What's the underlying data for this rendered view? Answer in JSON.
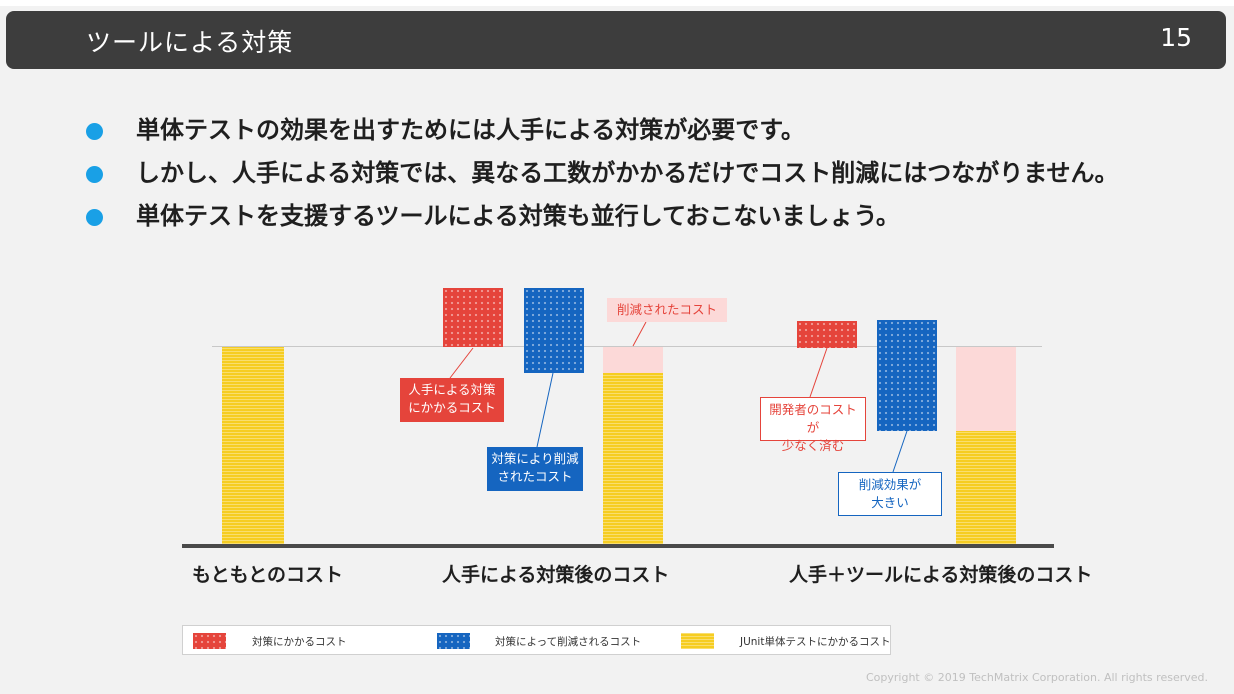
{
  "slide": {
    "title": "ツールによる対策",
    "page_number": "15"
  },
  "bullets": [
    "単体テストの効果を出すためには人手による対策が必要です。",
    "しかし、人手による対策では、異なる工数がかかるだけでコスト削減にはつながりません。",
    "単体テストを支援するツールによる対策も並行しておこないましょう。"
  ],
  "diagram": {
    "categories": [
      "もともとのコスト",
      "人手による対策後のコスト",
      "人手＋ツールによる対策後のコスト"
    ],
    "callouts": {
      "manual_cost": "人手による対策\nにかかるコスト",
      "reduced_by_measure": "対策により削減\nされたコスト",
      "reduced_cost": "削減されたコスト",
      "dev_cost_small": "開発者のコストが\n少なく済む",
      "big_effect": "削減効果が\n大きい"
    },
    "colors": {
      "measure_cost": "#e5443b",
      "reduced_by_measure": "#1565c0",
      "junit_cost": "#f6cd21",
      "reduced": "#fcd9d8"
    }
  },
  "legend": [
    {
      "label": "対策にかかるコスト",
      "color": "#e5443b"
    },
    {
      "label": "対策によって削減されるコスト",
      "color": "#1565c0"
    },
    {
      "label": "JUnit単体テストにかかるコスト",
      "color": "#f6cd21"
    }
  ],
  "footer": {
    "copyright": "Copyright © 2019 TechMatrix Corporation. All rights reserved."
  }
}
